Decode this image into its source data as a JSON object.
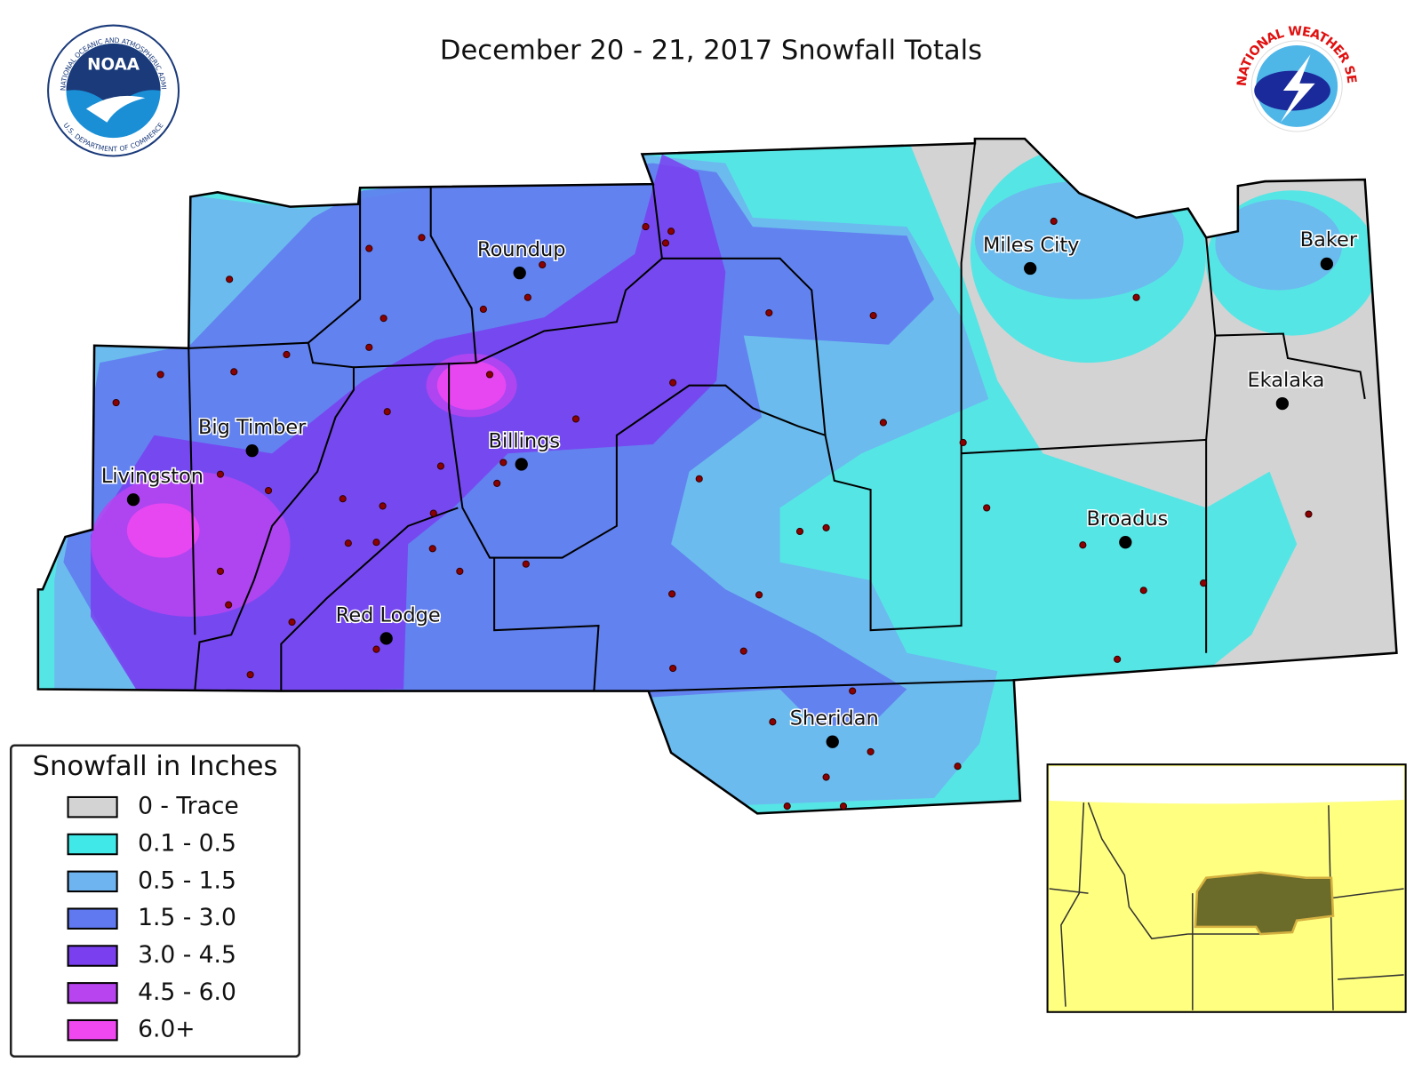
{
  "header": {
    "title": "December 20 - 21, 2017 Snowfall Totals"
  },
  "logos": {
    "noaa": {
      "acronym": "NOAA",
      "ring_text": "NATIONAL OCEANIC AND ATMOSPHERIC ADMINISTRATION",
      "bottom_text": "U.S. DEPARTMENT OF COMMERCE"
    },
    "nws": {
      "ring_text": "NATIONAL WEATHER SERVICE"
    }
  },
  "map": {
    "cities": [
      "Roundup",
      "Miles City",
      "Baker",
      "Ekalaka",
      "Big Timber",
      "Billings",
      "Livingston",
      "Broadus",
      "Red Lodge",
      "Sheridan"
    ]
  },
  "legend": {
    "title": "Snowfall in Inches",
    "entries": [
      {
        "label": "0 - Trace",
        "color": "#d3d3d3"
      },
      {
        "label": "0.1 - 0.5",
        "color": "#40e8e8"
      },
      {
        "label": "0.5 - 1.5",
        "color": "#6eb4f0"
      },
      {
        "label": "1.5 - 3.0",
        "color": "#6078f0"
      },
      {
        "label": "3.0 - 4.5",
        "color": "#7a40f0"
      },
      {
        "label": "4.5 - 6.0",
        "color": "#b844f0"
      },
      {
        "label": "6.0+",
        "color": "#f048f0"
      }
    ]
  }
}
